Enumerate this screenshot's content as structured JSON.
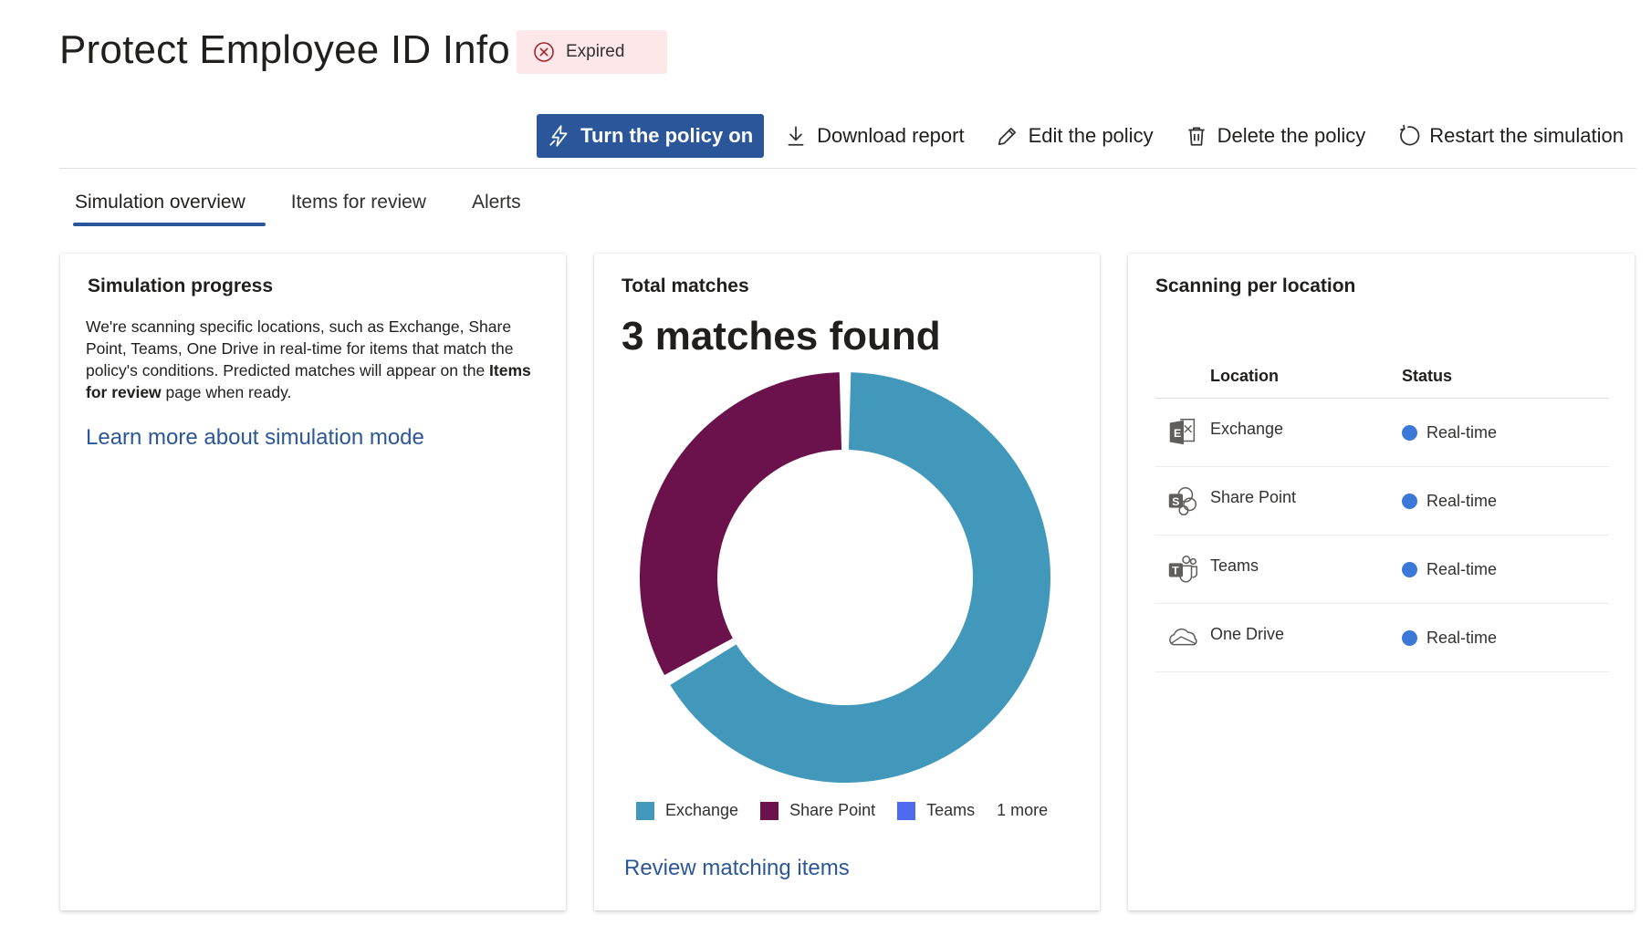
{
  "page": {
    "title": "Protect Employee ID Info",
    "status_badge": "Expired"
  },
  "toolbar": {
    "turn_on": "Turn the policy on",
    "download": "Download report",
    "edit": "Edit the policy",
    "delete": "Delete the policy",
    "restart": "Restart the simulation"
  },
  "tabs": [
    {
      "label": "Simulation overview",
      "active": true
    },
    {
      "label": "Items for review",
      "active": false
    },
    {
      "label": "Alerts",
      "active": false
    }
  ],
  "progress_card": {
    "title": "Simulation progress",
    "desc_before": "We're scanning specific locations, such as Exchange, Share Point, Teams, One Drive in real-time for items that match the policy's conditions. Predicted matches will appear on the ",
    "desc_bold": "Items for review",
    "desc_after": " page when ready.",
    "link": "Learn more about simulation mode"
  },
  "matches_card": {
    "title": "Total matches",
    "headline": "3 matches found",
    "legend_more": "1 more",
    "link": "Review matching items"
  },
  "chart_data": {
    "type": "pie",
    "series": [
      {
        "name": "Exchange",
        "value": 2,
        "color": "#4298bb"
      },
      {
        "name": "Share Point",
        "value": 1,
        "color": "#6b114b"
      },
      {
        "name": "Teams",
        "value": 0,
        "color": "#4f6bed"
      }
    ],
    "legend_placement": "bottom"
  },
  "location_card": {
    "title": "Scanning per location",
    "col_location": "Location",
    "col_status": "Status",
    "rows": [
      {
        "location": "Exchange",
        "status": "Real-time",
        "icon": "exchange-icon"
      },
      {
        "location": "Share Point",
        "status": "Real-time",
        "icon": "sharepoint-icon"
      },
      {
        "location": "Teams",
        "status": "Real-time",
        "icon": "teams-icon"
      },
      {
        "location": "One Drive",
        "status": "Real-time",
        "icon": "onedrive-icon"
      }
    ]
  },
  "colors": {
    "accent": "#2b579a",
    "status_realtime": "#3b78d8",
    "badge_bg": "#fde7e9",
    "badge_icon": "#a4262c"
  }
}
